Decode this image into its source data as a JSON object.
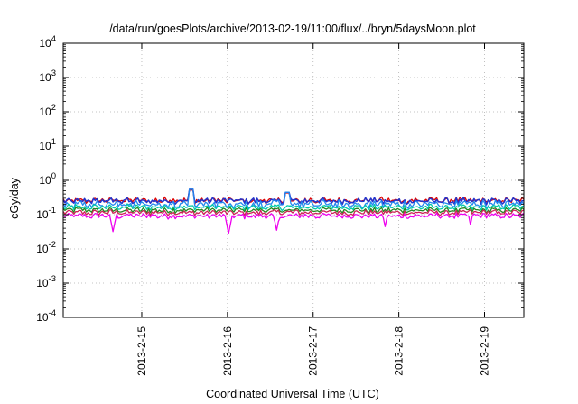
{
  "chart_data": {
    "type": "line",
    "title": "/data/run/goesPlots/archive/2013-02-19/11:00/flux/../bryn/5daysMoon.plot",
    "xlabel": "Coordinated Universal Time (UTC)",
    "ylabel": "cGy/day",
    "x_range": [
      "2013-02-14T02:00",
      "2013-02-19T11:00"
    ],
    "x_ticks": [
      "2013-2-15",
      "2013-2-16",
      "2013-2-17",
      "2013-2-18",
      "2013-2-19"
    ],
    "y_scale": "log",
    "ylim": [
      0.0001,
      10000
    ],
    "y_ticks": [
      {
        "base": "10",
        "exp": "-4"
      },
      {
        "base": "10",
        "exp": "-3"
      },
      {
        "base": "10",
        "exp": "-2"
      },
      {
        "base": "10",
        "exp": "-1"
      },
      {
        "base": "10",
        "exp": "0"
      },
      {
        "base": "10",
        "exp": "1"
      },
      {
        "base": "10",
        "exp": "2"
      },
      {
        "base": "10",
        "exp": "3"
      },
      {
        "base": "10",
        "exp": "4"
      }
    ],
    "grid": true,
    "series_colors": [
      "#dd0000",
      "#2233cc",
      "#2288ee",
      "#00ccaa",
      "#228822",
      "#cc2255",
      "#ee00ee"
    ],
    "series": [
      {
        "color": "#dd0000",
        "baseline": 0.26,
        "noise": 0.08
      },
      {
        "color": "#2233cc",
        "baseline": 0.25,
        "noise": 0.09
      },
      {
        "color": "#2288ee",
        "baseline": 0.2,
        "noise": 0.15
      },
      {
        "color": "#00ccaa",
        "baseline": 0.165,
        "noise": 0.06
      },
      {
        "color": "#228822",
        "baseline": 0.135,
        "noise": 0.05
      },
      {
        "color": "#cc2255",
        "baseline": 0.115,
        "noise": 0.05
      },
      {
        "color": "#ee00ee",
        "baseline": 0.092,
        "noise": 0.06,
        "dips": [
          {
            "t": "2013-02-14T16:00",
            "v": 0.032
          },
          {
            "t": "2013-02-16T00:30",
            "v": 0.028
          },
          {
            "t": "2013-02-16T14:00",
            "v": 0.035
          },
          {
            "t": "2013-02-17T20:00",
            "v": 0.045
          },
          {
            "t": "2013-02-18T20:00",
            "v": 0.05
          }
        ]
      }
    ],
    "peaks": [
      {
        "t": "2013-02-15T14:00",
        "v": 0.55
      },
      {
        "t": "2013-02-16T17:00",
        "v": 0.45
      }
    ]
  }
}
